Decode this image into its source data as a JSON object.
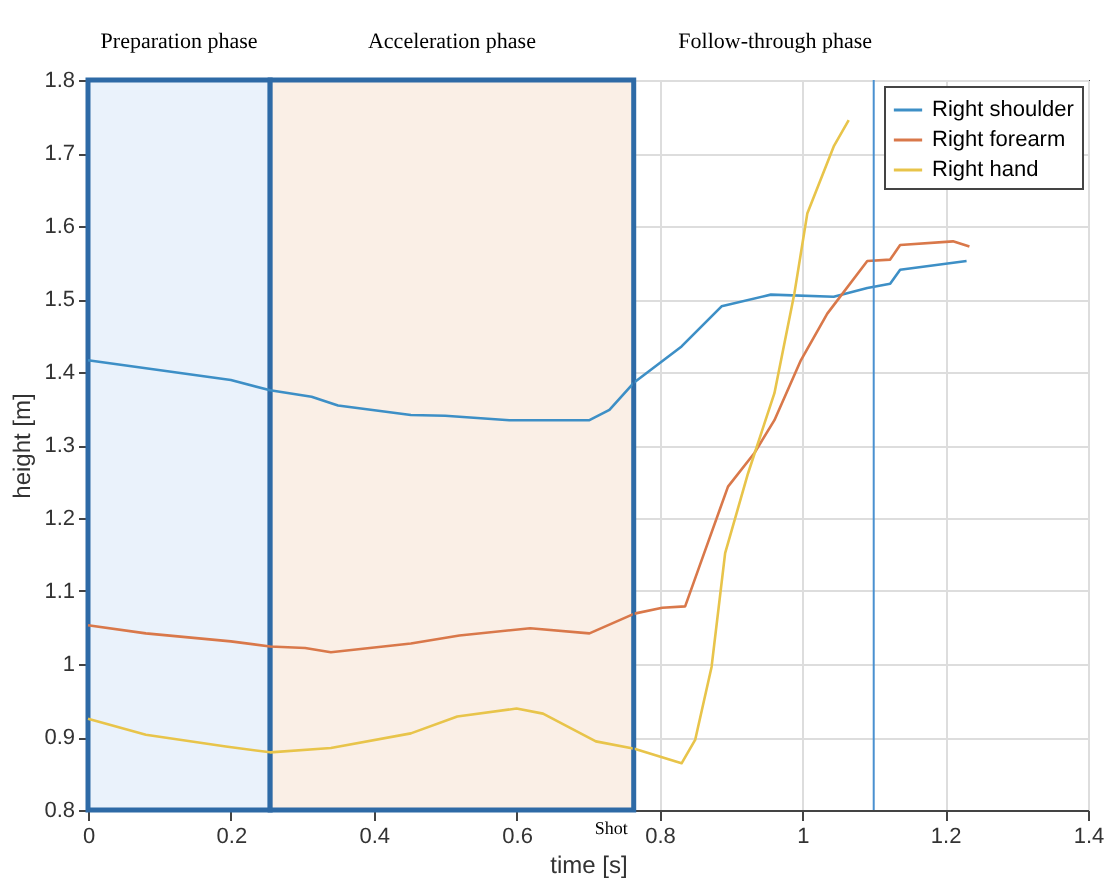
{
  "chart_data": {
    "type": "line",
    "xlabel": "time [s]",
    "ylabel": "height [m]",
    "xlim": [
      0,
      1.4
    ],
    "xticks": [
      0,
      0.2,
      0.4,
      0.6,
      0.8,
      1,
      1.2,
      1.4
    ],
    "ylim": [
      0.8,
      1.8
    ],
    "yticks": [
      0.8,
      0.9,
      1,
      1.1,
      1.2,
      1.3,
      1.4,
      1.5,
      1.6,
      1.7,
      1.8
    ],
    "grid": true,
    "legend": "top right",
    "line_style": "solid",
    "marker": "none",
    "bands": [
      {
        "axis": "x",
        "from": 0,
        "to": 0.255,
        "label": "Preparation phase",
        "color": "#eaf2fb"
      },
      {
        "axis": "x",
        "from": 0.255,
        "to": 0.764,
        "label": "Acceleration phase",
        "color": "#faefe6"
      }
    ],
    "ref_lines": [
      {
        "axis": "x",
        "value": 0.764,
        "label": "Shot",
        "color": "#2e6aa6"
      },
      {
        "axis": "x",
        "value": 1.1,
        "color": "#4a90d0"
      }
    ],
    "annotations": [
      "Follow-through phase"
    ],
    "series": [
      {
        "name": "Right shoulder",
        "color": "#3d8fc6",
        "x": [
          0,
          0.2,
          0.255,
          0.313,
          0.35,
          0.452,
          0.5,
          0.59,
          0.702,
          0.73,
          0.765,
          0.831,
          0.887,
          0.956,
          1.044,
          1.091,
          1.123,
          1.137,
          1.23
        ],
        "values": [
          1.416,
          1.389,
          1.375,
          1.366,
          1.354,
          1.341,
          1.34,
          1.334,
          1.334,
          1.348,
          1.386,
          1.435,
          1.49,
          1.506,
          1.503,
          1.515,
          1.521,
          1.54,
          1.552
        ]
      },
      {
        "name": "Right forearm",
        "color": "#d9784a",
        "x": [
          0,
          0.081,
          0.2,
          0.255,
          0.304,
          0.34,
          0.452,
          0.52,
          0.619,
          0.702,
          0.765,
          0.804,
          0.836,
          0.859,
          0.896,
          0.933,
          0.961,
          0.998,
          1.035,
          1.091,
          1.123,
          1.137,
          1.211,
          1.234
        ],
        "values": [
          1.053,
          1.042,
          1.031,
          1.024,
          1.022,
          1.016,
          1.028,
          1.039,
          1.049,
          1.042,
          1.069,
          1.077,
          1.079,
          1.142,
          1.243,
          1.289,
          1.334,
          1.416,
          1.48,
          1.552,
          1.554,
          1.574,
          1.579,
          1.572
        ]
      },
      {
        "name": "Right hand",
        "color": "#e8c44a",
        "x": [
          0,
          0.081,
          0.193,
          0.255,
          0.34,
          0.452,
          0.517,
          0.6,
          0.637,
          0.711,
          0.765,
          0.831,
          0.85,
          0.873,
          0.892,
          0.924,
          0.961,
          0.989,
          1.007,
          1.044,
          1.065
        ],
        "values": [
          0.925,
          0.903,
          0.887,
          0.879,
          0.885,
          0.905,
          0.928,
          0.939,
          0.932,
          0.894,
          0.884,
          0.864,
          0.896,
          0.996,
          1.152,
          1.261,
          1.371,
          1.508,
          1.617,
          1.709,
          1.745
        ]
      }
    ]
  }
}
